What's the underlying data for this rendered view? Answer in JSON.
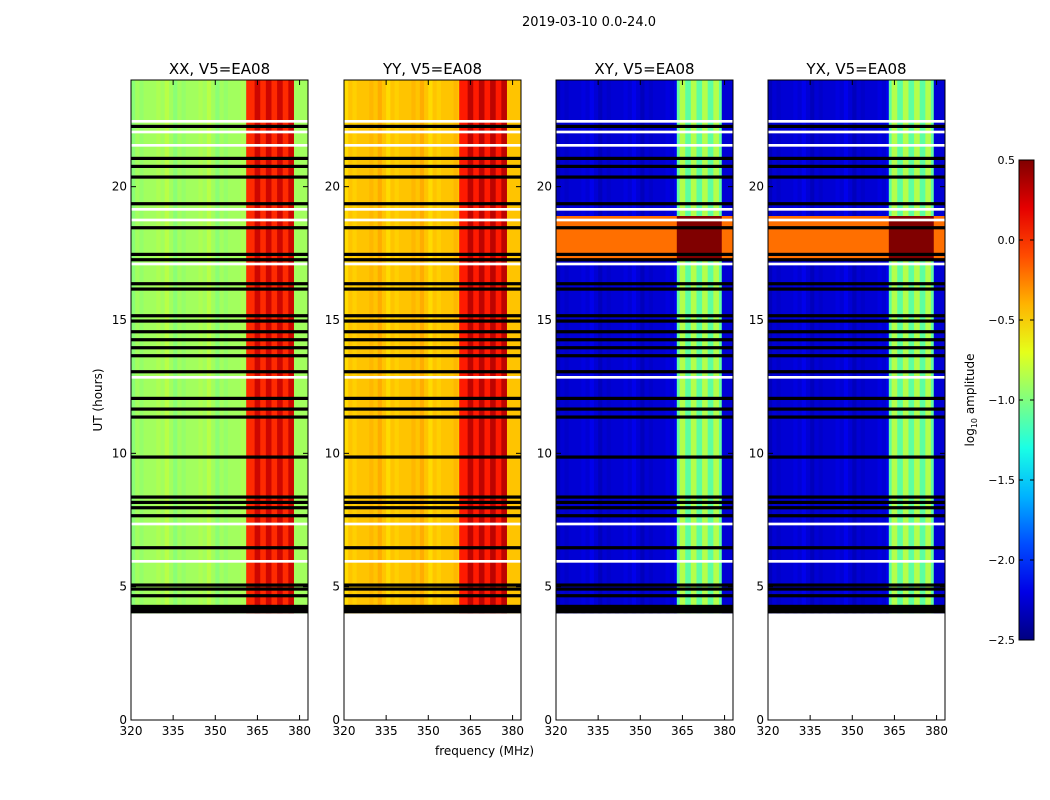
{
  "figure": {
    "suptitle": "2019-03-10 0.0-24.0"
  },
  "colors": {
    "no_data": "#ffffff",
    "flagged": "#000000",
    "colormap": "jet"
  },
  "chart_data": [
    {
      "type": "heatmap",
      "title": "XX, V5=EA08",
      "xlabel": "",
      "ylabel": "UT (hours)",
      "xlim": [
        320,
        383
      ],
      "ylim": [
        0,
        24
      ],
      "xticks": [
        320,
        335,
        350,
        365,
        380
      ],
      "yticks": [
        0,
        5,
        10,
        15,
        20
      ],
      "base_log_amplitude": -0.9,
      "rfi_log_amplitude": 0.0,
      "rfi_band_mhz": [
        361,
        378
      ],
      "bright_band_mhz": [],
      "data_start_hour": 4.0
    },
    {
      "type": "heatmap",
      "title": "YY, V5=EA08",
      "xlabel": "frequency (MHz)",
      "ylabel": "",
      "xlim": [
        320,
        383
      ],
      "ylim": [
        0,
        24
      ],
      "xticks": [
        320,
        335,
        350,
        365,
        380
      ],
      "yticks": [
        0,
        5,
        10,
        15,
        20
      ],
      "base_log_amplitude": -0.45,
      "rfi_log_amplitude": 0.05,
      "rfi_band_mhz": [
        361,
        378
      ],
      "bright_band_mhz": [],
      "data_start_hour": 4.0
    },
    {
      "type": "heatmap",
      "title": "XY, V5=EA08",
      "xlabel": "",
      "ylabel": "",
      "xlim": [
        320,
        383
      ],
      "ylim": [
        0,
        24
      ],
      "xticks": [
        320,
        335,
        350,
        365,
        380
      ],
      "yticks": [
        0,
        5,
        10,
        15,
        20
      ],
      "base_log_amplitude": -2.25,
      "rfi_log_amplitude": -1.1,
      "rfi_band_mhz": [
        363,
        379
      ],
      "bright_band_mhz": [
        17.3,
        18.9
      ],
      "data_start_hour": 4.0
    },
    {
      "type": "heatmap",
      "title": "YX, V5=EA08",
      "xlabel": "",
      "ylabel": "",
      "xlim": [
        320,
        383
      ],
      "ylim": [
        0,
        24
      ],
      "xticks": [
        320,
        335,
        350,
        365,
        380
      ],
      "yticks": [
        0,
        5,
        10,
        15,
        20
      ],
      "base_log_amplitude": -2.25,
      "rfi_log_amplitude": -1.1,
      "rfi_band_mhz": [
        363,
        379
      ],
      "bright_band_mhz": [
        17.3,
        18.9
      ],
      "data_start_hour": 4.0
    }
  ],
  "shared": {
    "flag_hours": [
      4.2,
      4.6,
      4.85,
      5.0,
      6.4,
      7.6,
      7.9,
      8.1,
      8.3,
      9.8,
      11.3,
      11.6,
      12.0,
      13.0,
      13.6,
      13.9,
      14.2,
      14.5,
      14.9,
      15.1,
      16.1,
      16.3,
      17.2,
      17.4,
      18.4,
      19.3,
      20.3,
      20.7,
      21.0,
      22.2
    ],
    "gap_hours": [
      5.9,
      7.3,
      12.8,
      17.05,
      18.7,
      19.1,
      21.5,
      22.0,
      22.4
    ],
    "rfi_channel_mhz": [
      364,
      368,
      372,
      376
    ]
  },
  "colorbar": {
    "label": "log10 amplitude",
    "label_base": "log",
    "label_sub": "10",
    "label_rest": " amplitude",
    "min": -2.5,
    "max": 0.5,
    "ticks": [
      0.5,
      0.0,
      -0.5,
      -1.0,
      -1.5,
      -2.0,
      -2.5
    ],
    "tick_labels": [
      "0.5",
      "0.0",
      "−0.5",
      "−1.0",
      "−1.5",
      "−2.0",
      "−2.5"
    ]
  }
}
